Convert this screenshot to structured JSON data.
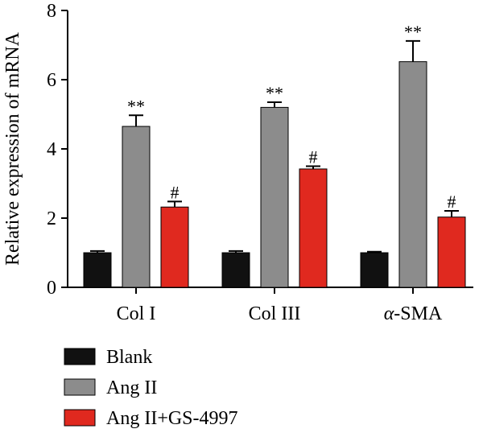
{
  "chart_data": {
    "type": "bar",
    "ylabel": "Relative expression of mRNA",
    "ylim": [
      0,
      8
    ],
    "yticks": [
      0,
      2,
      4,
      6,
      8
    ],
    "categories": [
      "Col I",
      "Col III",
      "α-SMA"
    ],
    "series": [
      {
        "name": "Blank",
        "color": "#111111",
        "values": [
          1.0,
          1.0,
          1.0
        ],
        "errors": [
          0.05,
          0.05,
          0.03
        ],
        "annotations": [
          "",
          "",
          ""
        ]
      },
      {
        "name": "Ang II",
        "color": "#8c8c8c",
        "values": [
          4.65,
          5.2,
          6.52
        ],
        "errors": [
          0.32,
          0.15,
          0.6
        ],
        "annotations": [
          "**",
          "**",
          "**"
        ]
      },
      {
        "name": "Ang II+GS-4997",
        "color": "#e0291f",
        "values": [
          2.32,
          3.42,
          2.03
        ],
        "errors": [
          0.16,
          0.08,
          0.18
        ],
        "annotations": [
          "#",
          "#",
          "#"
        ]
      }
    ],
    "grid": false,
    "legend_position": "bottom-left"
  }
}
